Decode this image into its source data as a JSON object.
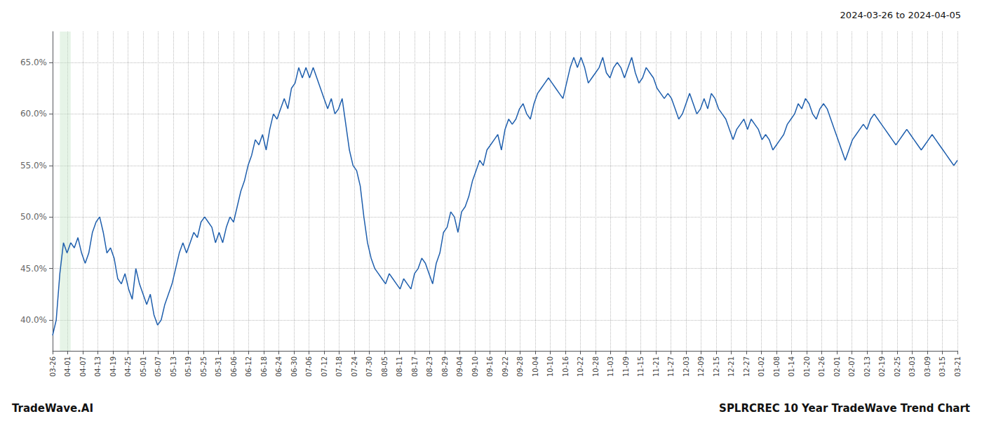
{
  "chart_data": {
    "type": "line",
    "title": "SPLRCREC 10 Year TradeWave Trend Chart",
    "subtitle": "2024-03-26 to 2024-04-05",
    "annotations": [
      "TradeWave.AI"
    ],
    "color": "#1f5fad",
    "grid": true,
    "highlight": {
      "x": [
        2,
        5
      ],
      "color": "#c8e6c9"
    },
    "xlim": [
      0,
      250
    ],
    "xticks": [
      {
        "value": 0,
        "label": "03-26"
      },
      {
        "value": 4.166666666666667,
        "label": "04-01"
      },
      {
        "value": 8.333333333333334,
        "label": "04-07"
      },
      {
        "value": 12.5,
        "label": "04-13"
      },
      {
        "value": 16.666666666666668,
        "label": "04-19"
      },
      {
        "value": 20.833333333333332,
        "label": "04-25"
      },
      {
        "value": 25,
        "label": "05-01"
      },
      {
        "value": 29.166666666666668,
        "label": "05-07"
      },
      {
        "value": 33.333333333333336,
        "label": "05-13"
      },
      {
        "value": 37.5,
        "label": "05-19"
      },
      {
        "value": 41.666666666666664,
        "label": "05-25"
      },
      {
        "value": 45.833333333333336,
        "label": "05-31"
      },
      {
        "value": 50,
        "label": "06-06"
      },
      {
        "value": 54.166666666666664,
        "label": "06-12"
      },
      {
        "value": 58.333333333333336,
        "label": "06-18"
      },
      {
        "value": 62.5,
        "label": "06-24"
      },
      {
        "value": 66.66666666666667,
        "label": "06-30"
      },
      {
        "value": 70.83333333333333,
        "label": "07-06"
      },
      {
        "value": 75,
        "label": "07-12"
      },
      {
        "value": 79.16666666666667,
        "label": "07-18"
      },
      {
        "value": 83.33333333333333,
        "label": "07-24"
      },
      {
        "value": 87.5,
        "label": "07-30"
      },
      {
        "value": 91.66666666666667,
        "label": "08-05"
      },
      {
        "value": 95.83333333333333,
        "label": "08-11"
      },
      {
        "value": 100,
        "label": "08-17"
      },
      {
        "value": 104.16666666666667,
        "label": "08-23"
      },
      {
        "value": 108.33333333333333,
        "label": "08-29"
      },
      {
        "value": 112.5,
        "label": "09-04"
      },
      {
        "value": 116.66666666666667,
        "label": "09-10"
      },
      {
        "value": 120.83333333333333,
        "label": "09-16"
      },
      {
        "value": 125,
        "label": "09-22"
      },
      {
        "value": 129.16666666666666,
        "label": "09-28"
      },
      {
        "value": 133.33333333333334,
        "label": "10-04"
      },
      {
        "value": 137.5,
        "label": "10-10"
      },
      {
        "value": 141.66666666666666,
        "label": "10-16"
      },
      {
        "value": 145.83333333333334,
        "label": "10-22"
      },
      {
        "value": 150,
        "label": "10-28"
      },
      {
        "value": 154.16666666666666,
        "label": "11-03"
      },
      {
        "value": 158.33333333333334,
        "label": "11-09"
      },
      {
        "value": 162.5,
        "label": "11-15"
      },
      {
        "value": 166.66666666666666,
        "label": "11-21"
      },
      {
        "value": 170.83333333333334,
        "label": "11-27"
      },
      {
        "value": 175,
        "label": "12-03"
      },
      {
        "value": 179.16666666666666,
        "label": "12-09"
      },
      {
        "value": 183.33333333333334,
        "label": "12-15"
      },
      {
        "value": 187.5,
        "label": "12-21"
      },
      {
        "value": 191.66666666666666,
        "label": "12-27"
      },
      {
        "value": 195.83333333333334,
        "label": "01-02"
      },
      {
        "value": 200,
        "label": "01-08"
      },
      {
        "value": 204.16666666666666,
        "label": "01-14"
      },
      {
        "value": 208.33333333333334,
        "label": "01-20"
      },
      {
        "value": 212.5,
        "label": "01-26"
      },
      {
        "value": 216.66666666666666,
        "label": "02-01"
      },
      {
        "value": 220.83333333333334,
        "label": "02-07"
      },
      {
        "value": 225,
        "label": "02-13"
      },
      {
        "value": 229.16666666666666,
        "label": "02-19"
      },
      {
        "value": 233.33333333333334,
        "label": "02-25"
      },
      {
        "value": 237.5,
        "label": "03-03"
      },
      {
        "value": 241.66666666666666,
        "label": "03-09"
      },
      {
        "value": 245.83333333333334,
        "label": "03-15"
      },
      {
        "value": 250,
        "label": "03-21"
      }
    ],
    "ylim": [
      37.0,
      68.0
    ],
    "yticks": [
      {
        "value": 40.0,
        "label": "40.0%"
      },
      {
        "value": 45.0,
        "label": "45.0%"
      },
      {
        "value": 50.0,
        "label": "50.0%"
      },
      {
        "value": 55.0,
        "label": "55.0%"
      },
      {
        "value": 60.0,
        "label": "60.0%"
      },
      {
        "value": 65.0,
        "label": "65.0%"
      }
    ],
    "x": [
      0,
      1,
      2,
      3,
      4,
      5,
      6,
      7,
      8,
      9,
      10,
      11,
      12,
      13,
      14,
      15,
      16,
      17,
      18,
      19,
      20,
      21,
      22,
      23,
      24,
      25,
      26,
      27,
      28,
      29,
      30,
      31,
      32,
      33,
      34,
      35,
      36,
      37,
      38,
      39,
      40,
      41,
      42,
      43,
      44,
      45,
      46,
      47,
      48,
      49,
      50,
      51,
      52,
      53,
      54,
      55,
      56,
      57,
      58,
      59,
      60,
      61,
      62,
      63,
      64,
      65,
      66,
      67,
      68,
      69,
      70,
      71,
      72,
      73,
      74,
      75,
      76,
      77,
      78,
      79,
      80,
      81,
      82,
      83,
      84,
      85,
      86,
      87,
      88,
      89,
      90,
      91,
      92,
      93,
      94,
      95,
      96,
      97,
      98,
      99,
      100,
      101,
      102,
      103,
      104,
      105,
      106,
      107,
      108,
      109,
      110,
      111,
      112,
      113,
      114,
      115,
      116,
      117,
      118,
      119,
      120,
      121,
      122,
      123,
      124,
      125,
      126,
      127,
      128,
      129,
      130,
      131,
      132,
      133,
      134,
      135,
      136,
      137,
      138,
      139,
      140,
      141,
      142,
      143,
      144,
      145,
      146,
      147,
      148,
      149,
      150,
      151,
      152,
      153,
      154,
      155,
      156,
      157,
      158,
      159,
      160,
      161,
      162,
      163,
      164,
      165,
      166,
      167,
      168,
      169,
      170,
      171,
      172,
      173,
      174,
      175,
      176,
      177,
      178,
      179,
      180,
      181,
      182,
      183,
      184,
      185,
      186,
      187,
      188,
      189,
      190,
      191,
      192,
      193,
      194,
      195,
      196,
      197,
      198,
      199,
      200,
      201,
      202,
      203,
      204,
      205,
      206,
      207,
      208,
      209,
      210,
      211,
      212,
      213,
      214,
      215,
      216,
      217,
      218,
      219,
      220,
      221,
      222,
      223,
      224,
      225,
      226,
      227,
      228,
      229,
      230,
      231,
      232,
      233,
      234,
      235,
      236,
      237,
      238,
      239,
      240,
      241,
      242,
      243,
      244,
      245,
      246,
      247,
      248,
      249,
      250
    ],
    "values": [
      38.5,
      40.0,
      44.5,
      47.5,
      46.5,
      47.5,
      47.0,
      48.0,
      46.5,
      45.5,
      46.5,
      48.5,
      49.5,
      50.0,
      48.5,
      46.5,
      47.0,
      46.0,
      44.0,
      43.5,
      44.5,
      43.0,
      42.0,
      45.0,
      43.5,
      42.5,
      41.5,
      42.5,
      40.5,
      39.5,
      40.0,
      41.5,
      42.5,
      43.5,
      45.0,
      46.5,
      47.5,
      46.5,
      47.5,
      48.5,
      48.0,
      49.5,
      50.0,
      49.5,
      49.0,
      47.5,
      48.5,
      47.5,
      49.0,
      50.0,
      49.5,
      51.0,
      52.5,
      53.5,
      55.0,
      56.0,
      57.5,
      57.0,
      58.0,
      56.5,
      58.5,
      60.0,
      59.5,
      60.5,
      61.5,
      60.5,
      62.5,
      63.0,
      64.5,
      63.5,
      64.5,
      63.5,
      64.5,
      63.5,
      62.5,
      61.5,
      60.5,
      61.5,
      60.0,
      60.5,
      61.5,
      59.0,
      56.5,
      55.0,
      54.5,
      53.0,
      50.0,
      47.5,
      46.0,
      45.0,
      44.5,
      44.0,
      43.5,
      44.5,
      44.0,
      43.5,
      43.0,
      44.0,
      43.5,
      43.0,
      44.5,
      45.0,
      46.0,
      45.5,
      44.5,
      43.5,
      45.5,
      46.5,
      48.5,
      49.0,
      50.5,
      50.0,
      48.5,
      50.5,
      51.0,
      52.0,
      53.5,
      54.5,
      55.5,
      55.0,
      56.5,
      57.0,
      57.5,
      58.0,
      56.5,
      58.5,
      59.5,
      59.0,
      59.5,
      60.5,
      61.0,
      60.0,
      59.5,
      61.0,
      62.0,
      62.5,
      63.0,
      63.5,
      63.0,
      62.5,
      62.0,
      61.5,
      63.0,
      64.5,
      65.5,
      64.5,
      65.5,
      64.5,
      63.0,
      63.5,
      64.0,
      64.5,
      65.5,
      64.0,
      63.5,
      64.5,
      65.0,
      64.5,
      63.5,
      64.5,
      65.5,
      64.0,
      63.0,
      63.5,
      64.5,
      64.0,
      63.5,
      62.5,
      62.0,
      61.5,
      62.0,
      61.5,
      60.5,
      59.5,
      60.0,
      61.0,
      62.0,
      61.0,
      60.0,
      60.5,
      61.5,
      60.5,
      62.0,
      61.5,
      60.5,
      60.0,
      59.5,
      58.5,
      57.5,
      58.5,
      59.0,
      59.5,
      58.5,
      59.5,
      59.0,
      58.5,
      57.5,
      58.0,
      57.5,
      56.5,
      57.0,
      57.5,
      58.0,
      59.0,
      59.5,
      60.0,
      61.0,
      60.5,
      61.5,
      61.0,
      60.0,
      59.5,
      60.5,
      61.0,
      60.5,
      59.5,
      58.5,
      57.5,
      56.5,
      55.5,
      56.5,
      57.5,
      58.0,
      58.5,
      59.0,
      58.5,
      59.5,
      60.0,
      59.5,
      59.0,
      58.5,
      58.0,
      57.5,
      57.0,
      57.5,
      58.0,
      58.5,
      58.0,
      57.5,
      57.0,
      56.5,
      57.0,
      57.5,
      58.0,
      57.5,
      57.0,
      56.5,
      56.0,
      55.5,
      55.0,
      55.5
    ]
  }
}
